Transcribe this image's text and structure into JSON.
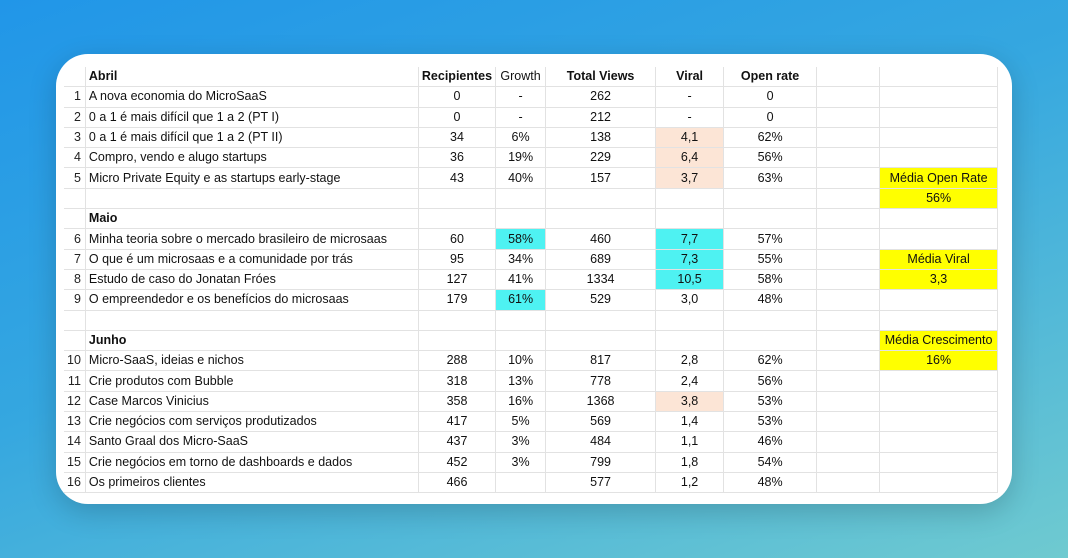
{
  "headers": {
    "title": "Abril",
    "recipients": "Recipientes",
    "growth": "Growth",
    "views": "Total Views",
    "viral": "Viral",
    "open_rate": "Open rate"
  },
  "sections": {
    "maio": "Maio",
    "junho": "Junho"
  },
  "rows": [
    {
      "n": "1",
      "title": "A nova economia do MicroSaaS",
      "recipients": "0",
      "growth": "-",
      "views": "262",
      "viral": "-",
      "open_rate": "0"
    },
    {
      "n": "2",
      "title": "0 a 1 é mais difícil que 1 a 2 (PT I)",
      "recipients": "0",
      "growth": "-",
      "views": "212",
      "viral": "-",
      "open_rate": "0"
    },
    {
      "n": "3",
      "title": "0 a 1 é mais difícil que 1 a 2 (PT II)",
      "recipients": "34",
      "growth": "6%",
      "views": "138",
      "viral": "4,1",
      "open_rate": "62%"
    },
    {
      "n": "4",
      "title": "Compro, vendo e alugo startups",
      "recipients": "36",
      "growth": "19%",
      "views": "229",
      "viral": "6,4",
      "open_rate": "56%"
    },
    {
      "n": "5",
      "title": "Micro Private Equity e as startups early-stage",
      "recipients": "43",
      "growth": "40%",
      "views": "157",
      "viral": "3,7",
      "open_rate": "63%"
    },
    {
      "n": "6",
      "title": "Minha teoria sobre o mercado brasileiro de microsaas",
      "recipients": "60",
      "growth": "58%",
      "views": "460",
      "viral": "7,7",
      "open_rate": "57%"
    },
    {
      "n": "7",
      "title": "O que é um microsaas e a comunidade por trás",
      "recipients": "95",
      "growth": "34%",
      "views": "689",
      "viral": "7,3",
      "open_rate": "55%"
    },
    {
      "n": "8",
      "title": "Estudo de caso do Jonatan Fróes",
      "recipients": "127",
      "growth": "41%",
      "views": "1334",
      "viral": "10,5",
      "open_rate": "58%"
    },
    {
      "n": "9",
      "title": "O empreendedor e os benefícios do microsaas",
      "recipients": "179",
      "growth": "61%",
      "views": "529",
      "viral": "3,0",
      "open_rate": "48%"
    },
    {
      "n": "10",
      "title": "Micro-SaaS, ideias e nichos",
      "recipients": "288",
      "growth": "10%",
      "views": "817",
      "viral": "2,8",
      "open_rate": "62%"
    },
    {
      "n": "11",
      "title": "Crie produtos com Bubble",
      "recipients": "318",
      "growth": "13%",
      "views": "778",
      "viral": "2,4",
      "open_rate": "56%"
    },
    {
      "n": "12",
      "title": "Case Marcos Vinicius",
      "recipients": "358",
      "growth": "16%",
      "views": "1368",
      "viral": "3,8",
      "open_rate": "53%"
    },
    {
      "n": "13",
      "title": "Crie negócios com serviços produtizados",
      "recipients": "417",
      "growth": "5%",
      "views": "569",
      "viral": "1,4",
      "open_rate": "53%"
    },
    {
      "n": "14",
      "title": "Santo Graal dos Micro-SaaS",
      "recipients": "437",
      "growth": "3%",
      "views": "484",
      "viral": "1,1",
      "open_rate": "46%"
    },
    {
      "n": "15",
      "title": "Crie negócios em torno de dashboards e dados",
      "recipients": "452",
      "growth": "3%",
      "views": "799",
      "viral": "1,8",
      "open_rate": "54%"
    },
    {
      "n": "16",
      "title": "Os primeiros clientes",
      "recipients": "466",
      "growth": "",
      "views": "577",
      "viral": "1,2",
      "open_rate": "48%"
    }
  ],
  "summary": {
    "open_rate_label": "Média Open Rate",
    "open_rate_value": "56%",
    "viral_label": "Média Viral",
    "viral_value": "3,3",
    "growth_label": "Média Crescimento",
    "growth_value": "16%"
  },
  "colors": {
    "viral_high": "#fce5d6",
    "top_highlight": "#4ef2f2",
    "summary": "#ffff00",
    "background_start": "#2196e8",
    "background_end": "#6fcad0"
  }
}
